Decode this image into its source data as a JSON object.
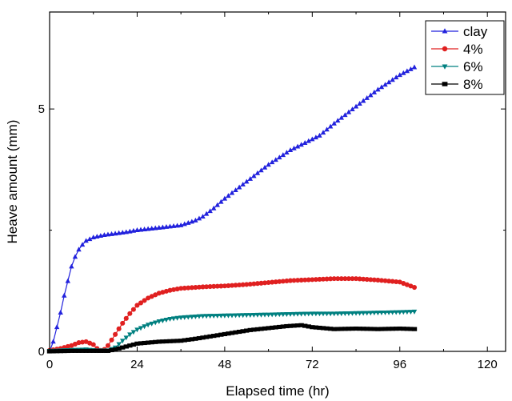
{
  "chart_data": {
    "type": "line",
    "title": "",
    "xlabel": "Elapsed time (hr)",
    "ylabel": "Heave amount (mm)",
    "xlim": [
      0,
      125
    ],
    "ylim": [
      0,
      7.0
    ],
    "xticks": [
      0,
      24,
      48,
      72,
      96,
      120
    ],
    "yticks": [
      0,
      5
    ],
    "grid": false,
    "legend_position": "top-right",
    "series": [
      {
        "name": "clay",
        "color": "#2222dd",
        "marker": "triangle-up",
        "x": [
          0,
          1,
          2,
          3,
          4,
          5,
          6,
          7,
          8,
          9,
          10,
          12,
          15,
          18,
          21,
          24,
          30,
          36,
          40,
          42,
          45,
          48,
          54,
          60,
          66,
          70,
          74,
          78,
          84,
          90,
          96,
          100
        ],
        "y": [
          0.0,
          0.2,
          0.5,
          0.8,
          1.15,
          1.45,
          1.75,
          1.95,
          2.1,
          2.2,
          2.28,
          2.35,
          2.4,
          2.43,
          2.46,
          2.5,
          2.55,
          2.6,
          2.7,
          2.78,
          2.95,
          3.15,
          3.5,
          3.85,
          4.15,
          4.3,
          4.45,
          4.7,
          5.05,
          5.4,
          5.7,
          5.86
        ]
      },
      {
        "name": "4%",
        "color": "#e02020",
        "marker": "circle",
        "x": [
          0,
          3,
          6,
          8,
          10,
          12,
          13,
          14,
          15,
          16,
          18,
          20,
          22,
          24,
          27,
          30,
          33,
          36,
          42,
          48,
          54,
          60,
          66,
          72,
          78,
          84,
          90,
          96,
          100
        ],
        "y": [
          0.02,
          0.06,
          0.12,
          0.18,
          0.2,
          0.14,
          0.06,
          0.02,
          0.04,
          0.12,
          0.35,
          0.58,
          0.78,
          0.95,
          1.1,
          1.2,
          1.26,
          1.3,
          1.33,
          1.35,
          1.38,
          1.42,
          1.46,
          1.48,
          1.5,
          1.5,
          1.47,
          1.43,
          1.32
        ]
      },
      {
        "name": "6%",
        "color": "#008080",
        "marker": "triangle-down",
        "x": [
          0,
          6,
          10,
          13,
          16,
          18,
          20,
          22,
          24,
          27,
          30,
          33,
          36,
          42,
          48,
          54,
          60,
          66,
          72,
          78,
          84,
          90,
          96,
          100
        ],
        "y": [
          0.01,
          0.03,
          0.04,
          0.02,
          0.02,
          0.08,
          0.22,
          0.35,
          0.45,
          0.55,
          0.62,
          0.67,
          0.7,
          0.73,
          0.74,
          0.75,
          0.76,
          0.77,
          0.78,
          0.78,
          0.79,
          0.8,
          0.81,
          0.82
        ]
      },
      {
        "name": "8%",
        "color": "#000000",
        "marker": "square",
        "x": [
          0,
          6,
          12,
          16,
          18,
          20,
          22,
          24,
          30,
          36,
          40,
          45,
          50,
          55,
          60,
          65,
          69,
          72,
          78,
          84,
          90,
          96,
          100
        ],
        "y": [
          0.0,
          0.01,
          0.01,
          0.01,
          0.04,
          0.08,
          0.12,
          0.16,
          0.2,
          0.22,
          0.26,
          0.32,
          0.38,
          0.44,
          0.48,
          0.52,
          0.54,
          0.5,
          0.46,
          0.47,
          0.46,
          0.47,
          0.46
        ]
      }
    ]
  }
}
